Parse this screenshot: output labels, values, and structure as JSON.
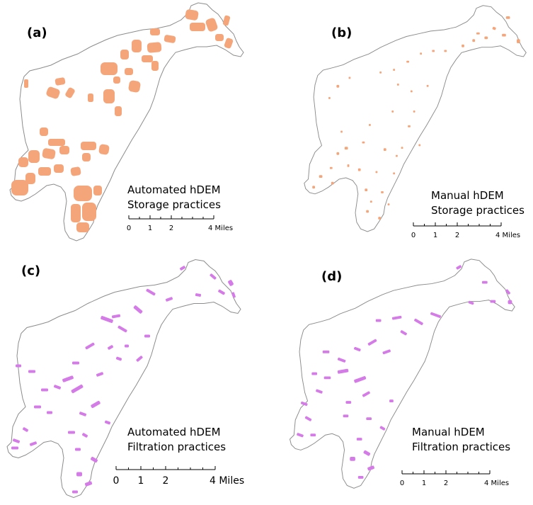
{
  "panels": [
    {
      "label": "(a)",
      "caption_line1": "Automated hDEM",
      "caption_line2": "Storage practices",
      "practice_color": "#F4A57A",
      "scale_ticks": [
        "0",
        "1",
        "2",
        "4 Miles"
      ]
    },
    {
      "label": "(b)",
      "caption_line1": "Manual hDEM",
      "caption_line2": "Storage practices",
      "practice_color": "#F4A57A",
      "scale_ticks": [
        "0",
        "1",
        "2",
        "4 Miles"
      ]
    },
    {
      "label": "(c)",
      "caption_line1": "Automated hDEM",
      "caption_line2": "Filtration practices",
      "practice_color": "#D57BE8",
      "scale_ticks": [
        "0",
        "1",
        "2",
        "4 Miles"
      ]
    },
    {
      "label": "(d)",
      "caption_line1": "Manual hDEM",
      "caption_line2": "Filtration practices",
      "practice_color": "#D57BE8",
      "scale_ticks": [
        "0",
        "1",
        "2",
        "4 Miles"
      ]
    }
  ],
  "boundary_color": "#8c8c8c",
  "scale_miles": [
    0,
    1,
    2,
    4
  ]
}
